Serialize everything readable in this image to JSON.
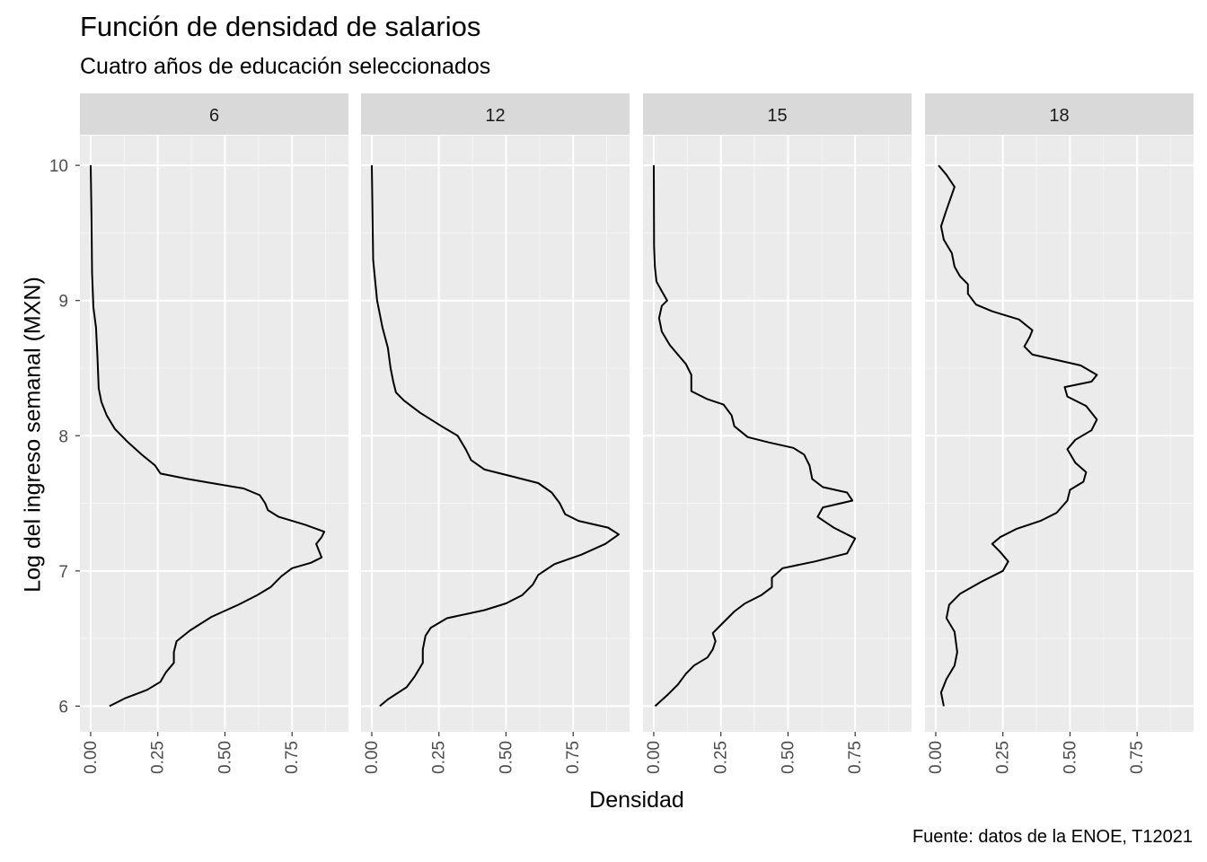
{
  "chart_data": {
    "type": "line",
    "title": "Función de densidad de salarios",
    "subtitle": "Cuatro años de educación seleccionados",
    "xlabel": "Densidad",
    "ylabel": "Log del ingreso semanal (MXN)",
    "caption": "Fuente: datos de la ENOE, T12021",
    "xlim": [
      -0.04,
      0.96
    ],
    "ylim": [
      5.81,
      10.22
    ],
    "x_ticks": [
      "0.00",
      "0.25",
      "0.50",
      "0.75"
    ],
    "x_tick_values": [
      0,
      0.25,
      0.5,
      0.75
    ],
    "y_ticks": [
      "6",
      "7",
      "8",
      "9",
      "10"
    ],
    "y_tick_values": [
      6,
      7,
      8,
      9,
      10
    ],
    "grid": true,
    "facets": [
      {
        "label": "6",
        "points": [
          [
            0.07,
            6.0
          ],
          [
            0.13,
            6.06
          ],
          [
            0.21,
            6.12
          ],
          [
            0.26,
            6.18
          ],
          [
            0.28,
            6.25
          ],
          [
            0.31,
            6.32
          ],
          [
            0.31,
            6.4
          ],
          [
            0.32,
            6.48
          ],
          [
            0.37,
            6.56
          ],
          [
            0.45,
            6.66
          ],
          [
            0.55,
            6.75
          ],
          [
            0.62,
            6.82
          ],
          [
            0.67,
            6.88
          ],
          [
            0.71,
            6.96
          ],
          [
            0.75,
            7.02
          ],
          [
            0.82,
            7.06
          ],
          [
            0.86,
            7.1
          ],
          [
            0.85,
            7.15
          ],
          [
            0.84,
            7.2
          ],
          [
            0.86,
            7.25
          ],
          [
            0.87,
            7.29
          ],
          [
            0.8,
            7.34
          ],
          [
            0.7,
            7.4
          ],
          [
            0.66,
            7.45
          ],
          [
            0.65,
            7.5
          ],
          [
            0.63,
            7.56
          ],
          [
            0.57,
            7.61
          ],
          [
            0.48,
            7.64
          ],
          [
            0.36,
            7.68
          ],
          [
            0.26,
            7.72
          ],
          [
            0.24,
            7.78
          ],
          [
            0.19,
            7.86
          ],
          [
            0.14,
            7.95
          ],
          [
            0.09,
            8.05
          ],
          [
            0.06,
            8.15
          ],
          [
            0.04,
            8.25
          ],
          [
            0.03,
            8.35
          ],
          [
            0.025,
            8.6
          ],
          [
            0.02,
            8.8
          ],
          [
            0.01,
            8.95
          ],
          [
            0.005,
            9.2
          ],
          [
            0.003,
            9.6
          ],
          [
            0.0,
            10.0
          ]
        ]
      },
      {
        "label": "12",
        "points": [
          [
            0.03,
            6.0
          ],
          [
            0.06,
            6.05
          ],
          [
            0.13,
            6.14
          ],
          [
            0.16,
            6.22
          ],
          [
            0.19,
            6.32
          ],
          [
            0.19,
            6.42
          ],
          [
            0.2,
            6.52
          ],
          [
            0.22,
            6.58
          ],
          [
            0.28,
            6.65
          ],
          [
            0.42,
            6.71
          ],
          [
            0.5,
            6.76
          ],
          [
            0.56,
            6.82
          ],
          [
            0.6,
            6.9
          ],
          [
            0.62,
            6.97
          ],
          [
            0.68,
            7.05
          ],
          [
            0.78,
            7.12
          ],
          [
            0.87,
            7.2
          ],
          [
            0.92,
            7.27
          ],
          [
            0.88,
            7.32
          ],
          [
            0.77,
            7.37
          ],
          [
            0.72,
            7.42
          ],
          [
            0.7,
            7.5
          ],
          [
            0.67,
            7.58
          ],
          [
            0.62,
            7.65
          ],
          [
            0.52,
            7.7
          ],
          [
            0.42,
            7.75
          ],
          [
            0.37,
            7.82
          ],
          [
            0.35,
            7.9
          ],
          [
            0.32,
            8.0
          ],
          [
            0.26,
            8.07
          ],
          [
            0.18,
            8.17
          ],
          [
            0.12,
            8.26
          ],
          [
            0.09,
            8.32
          ],
          [
            0.08,
            8.4
          ],
          [
            0.07,
            8.5
          ],
          [
            0.06,
            8.65
          ],
          [
            0.04,
            8.8
          ],
          [
            0.02,
            9.0
          ],
          [
            0.005,
            9.3
          ],
          [
            0.0,
            10.0
          ]
        ]
      },
      {
        "label": "15",
        "points": [
          [
            0.005,
            6.0
          ],
          [
            0.05,
            6.08
          ],
          [
            0.09,
            6.16
          ],
          [
            0.12,
            6.24
          ],
          [
            0.15,
            6.3
          ],
          [
            0.2,
            6.36
          ],
          [
            0.22,
            6.42
          ],
          [
            0.23,
            6.48
          ],
          [
            0.22,
            6.54
          ],
          [
            0.26,
            6.62
          ],
          [
            0.3,
            6.7
          ],
          [
            0.34,
            6.76
          ],
          [
            0.4,
            6.82
          ],
          [
            0.44,
            6.88
          ],
          [
            0.44,
            6.95
          ],
          [
            0.48,
            7.02
          ],
          [
            0.6,
            7.07
          ],
          [
            0.72,
            7.13
          ],
          [
            0.75,
            7.24
          ],
          [
            0.67,
            7.32
          ],
          [
            0.61,
            7.4
          ],
          [
            0.63,
            7.47
          ],
          [
            0.74,
            7.52
          ],
          [
            0.72,
            7.58
          ],
          [
            0.63,
            7.62
          ],
          [
            0.59,
            7.68
          ],
          [
            0.58,
            7.78
          ],
          [
            0.56,
            7.86
          ],
          [
            0.52,
            7.91
          ],
          [
            0.43,
            7.95
          ],
          [
            0.35,
            7.99
          ],
          [
            0.3,
            8.07
          ],
          [
            0.29,
            8.15
          ],
          [
            0.26,
            8.23
          ],
          [
            0.2,
            8.27
          ],
          [
            0.14,
            8.33
          ],
          [
            0.14,
            8.45
          ],
          [
            0.12,
            8.53
          ],
          [
            0.06,
            8.67
          ],
          [
            0.03,
            8.77
          ],
          [
            0.02,
            8.87
          ],
          [
            0.03,
            8.96
          ],
          [
            0.05,
            9.0
          ],
          [
            0.03,
            9.07
          ],
          [
            0.01,
            9.14
          ],
          [
            0.004,
            9.25
          ],
          [
            0.001,
            9.4
          ],
          [
            0.0,
            10.0
          ]
        ]
      },
      {
        "label": "18",
        "points": [
          [
            0.03,
            6.0
          ],
          [
            0.02,
            6.1
          ],
          [
            0.04,
            6.2
          ],
          [
            0.07,
            6.3
          ],
          [
            0.08,
            6.4
          ],
          [
            0.07,
            6.55
          ],
          [
            0.04,
            6.65
          ],
          [
            0.05,
            6.75
          ],
          [
            0.09,
            6.83
          ],
          [
            0.17,
            6.92
          ],
          [
            0.25,
            7.0
          ],
          [
            0.27,
            7.07
          ],
          [
            0.24,
            7.14
          ],
          [
            0.21,
            7.2
          ],
          [
            0.24,
            7.25
          ],
          [
            0.3,
            7.31
          ],
          [
            0.39,
            7.37
          ],
          [
            0.45,
            7.43
          ],
          [
            0.49,
            7.52
          ],
          [
            0.5,
            7.6
          ],
          [
            0.55,
            7.66
          ],
          [
            0.56,
            7.73
          ],
          [
            0.52,
            7.8
          ],
          [
            0.49,
            7.9
          ],
          [
            0.52,
            7.97
          ],
          [
            0.58,
            8.04
          ],
          [
            0.6,
            8.12
          ],
          [
            0.56,
            8.22
          ],
          [
            0.49,
            8.29
          ],
          [
            0.48,
            8.36
          ],
          [
            0.58,
            8.4
          ],
          [
            0.6,
            8.45
          ],
          [
            0.54,
            8.52
          ],
          [
            0.45,
            8.56
          ],
          [
            0.36,
            8.6
          ],
          [
            0.33,
            8.66
          ],
          [
            0.35,
            8.73
          ],
          [
            0.36,
            8.78
          ],
          [
            0.31,
            8.86
          ],
          [
            0.21,
            8.92
          ],
          [
            0.15,
            8.97
          ],
          [
            0.12,
            9.05
          ],
          [
            0.12,
            9.12
          ],
          [
            0.09,
            9.18
          ],
          [
            0.07,
            9.25
          ],
          [
            0.06,
            9.35
          ],
          [
            0.03,
            9.45
          ],
          [
            0.02,
            9.55
          ],
          [
            0.04,
            9.67
          ],
          [
            0.07,
            9.84
          ],
          [
            0.04,
            9.93
          ],
          [
            0.01,
            10.0
          ]
        ]
      }
    ]
  }
}
